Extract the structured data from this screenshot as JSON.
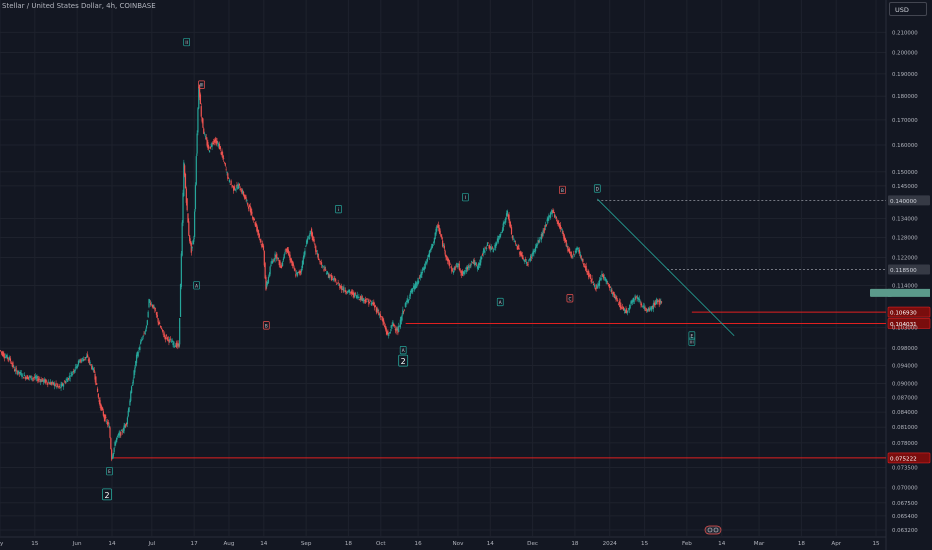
{
  "header": {
    "title": "Stellar / United States Dollar, 4h, COINBASE"
  },
  "currency_button": {
    "label": "USD"
  },
  "colors": {
    "background": "#131722",
    "grid": "#1e222d",
    "bull": "#26a69a",
    "bear": "#ef5350",
    "text": "#b2b5be",
    "support_line": "#e02020",
    "trend_line": "#26a69a"
  },
  "icons": {
    "timezone_badge": "clock-badge-icon"
  },
  "chart_data": {
    "type": "line",
    "symbol": "XLMUSD",
    "timeframe": "4h",
    "exchange": "COINBASE",
    "currency": "USD",
    "y_scale": "log",
    "ylim": [
      0.0623,
      0.2195
    ],
    "grid": true,
    "price_ticks": [
      0.21,
      0.2,
      0.19,
      0.18,
      0.17,
      0.16,
      0.15,
      0.145,
      0.134,
      0.128,
      0.122,
      0.114,
      0.103,
      0.098,
      0.094,
      0.09,
      0.087,
      0.084,
      0.081,
      0.078,
      0.0735,
      0.07,
      0.0675,
      0.0654,
      0.0632
    ],
    "time_ticks": [
      "ay",
      "15",
      "Jun",
      "14",
      "Jul",
      "17",
      "Aug",
      "14",
      "Sep",
      "18",
      "Oct",
      "16",
      "Nov",
      "14",
      "Dec",
      "18",
      "2024",
      "15",
      "Feb",
      "14",
      "Mar",
      "18",
      "Apr",
      "15"
    ],
    "time_tick_days": [
      0,
      14,
      31,
      45,
      61,
      78,
      92,
      106,
      123,
      140,
      153,
      168,
      184,
      197,
      214,
      231,
      245,
      259,
      276,
      290,
      305,
      322,
      336,
      352
    ],
    "price_path": [
      {
        "d": 0,
        "p": 0.0975
      },
      {
        "d": 2,
        "p": 0.0962
      },
      {
        "d": 4,
        "p": 0.0955
      },
      {
        "d": 6,
        "p": 0.093
      },
      {
        "d": 10,
        "p": 0.0915
      },
      {
        "d": 14,
        "p": 0.0912
      },
      {
        "d": 18,
        "p": 0.0905
      },
      {
        "d": 22,
        "p": 0.0898
      },
      {
        "d": 24,
        "p": 0.089
      },
      {
        "d": 28,
        "p": 0.0915
      },
      {
        "d": 32,
        "p": 0.095
      },
      {
        "d": 35,
        "p": 0.096
      },
      {
        "d": 38,
        "p": 0.0925
      },
      {
        "d": 40,
        "p": 0.086
      },
      {
        "d": 42,
        "p": 0.083
      },
      {
        "d": 44,
        "p": 0.081
      },
      {
        "d": 45,
        "p": 0.07522
      },
      {
        "d": 47,
        "p": 0.079
      },
      {
        "d": 49,
        "p": 0.08
      },
      {
        "d": 51,
        "p": 0.082
      },
      {
        "d": 53,
        "p": 0.089
      },
      {
        "d": 55,
        "p": 0.096
      },
      {
        "d": 57,
        "p": 0.1
      },
      {
        "d": 59,
        "p": 0.103
      },
      {
        "d": 60,
        "p": 0.11
      },
      {
        "d": 62,
        "p": 0.108
      },
      {
        "d": 64,
        "p": 0.104
      },
      {
        "d": 66,
        "p": 0.101
      },
      {
        "d": 68,
        "p": 0.1
      },
      {
        "d": 70,
        "p": 0.099
      },
      {
        "d": 72,
        "p": 0.0985
      },
      {
        "d": 74,
        "p": 0.153
      },
      {
        "d": 75,
        "p": 0.14
      },
      {
        "d": 76,
        "p": 0.129
      },
      {
        "d": 77,
        "p": 0.124
      },
      {
        "d": 78,
        "p": 0.128
      },
      {
        "d": 79,
        "p": 0.156
      },
      {
        "d": 80,
        "p": 0.185
      },
      {
        "d": 81,
        "p": 0.172
      },
      {
        "d": 82,
        "p": 0.165
      },
      {
        "d": 84,
        "p": 0.158
      },
      {
        "d": 86,
        "p": 0.162
      },
      {
        "d": 88,
        "p": 0.16
      },
      {
        "d": 90,
        "p": 0.154
      },
      {
        "d": 92,
        "p": 0.147
      },
      {
        "d": 94,
        "p": 0.144
      },
      {
        "d": 96,
        "p": 0.145
      },
      {
        "d": 98,
        "p": 0.142
      },
      {
        "d": 100,
        "p": 0.138
      },
      {
        "d": 102,
        "p": 0.134
      },
      {
        "d": 104,
        "p": 0.129
      },
      {
        "d": 106,
        "p": 0.124
      },
      {
        "d": 107,
        "p": 0.113
      },
      {
        "d": 109,
        "p": 0.12
      },
      {
        "d": 111,
        "p": 0.123
      },
      {
        "d": 113,
        "p": 0.119
      },
      {
        "d": 115,
        "p": 0.125
      },
      {
        "d": 117,
        "p": 0.121
      },
      {
        "d": 119,
        "p": 0.117
      },
      {
        "d": 121,
        "p": 0.118
      },
      {
        "d": 123,
        "p": 0.126
      },
      {
        "d": 125,
        "p": 0.13
      },
      {
        "d": 127,
        "p": 0.124
      },
      {
        "d": 129,
        "p": 0.12
      },
      {
        "d": 132,
        "p": 0.117
      },
      {
        "d": 135,
        "p": 0.115
      },
      {
        "d": 138,
        "p": 0.113
      },
      {
        "d": 141,
        "p": 0.112
      },
      {
        "d": 144,
        "p": 0.111
      },
      {
        "d": 147,
        "p": 0.11
      },
      {
        "d": 150,
        "p": 0.109
      },
      {
        "d": 153,
        "p": 0.106
      },
      {
        "d": 156,
        "p": 0.101
      },
      {
        "d": 158,
        "p": 0.104
      },
      {
        "d": 160,
        "p": 0.102
      },
      {
        "d": 162,
        "p": 0.107
      },
      {
        "d": 165,
        "p": 0.112
      },
      {
        "d": 168,
        "p": 0.115
      },
      {
        "d": 171,
        "p": 0.12
      },
      {
        "d": 174,
        "p": 0.126
      },
      {
        "d": 176,
        "p": 0.132
      },
      {
        "d": 178,
        "p": 0.126
      },
      {
        "d": 180,
        "p": 0.121
      },
      {
        "d": 182,
        "p": 0.118
      },
      {
        "d": 184,
        "p": 0.12
      },
      {
        "d": 186,
        "p": 0.117
      },
      {
        "d": 188,
        "p": 0.119
      },
      {
        "d": 190,
        "p": 0.121
      },
      {
        "d": 192,
        "p": 0.119
      },
      {
        "d": 194,
        "p": 0.123
      },
      {
        "d": 196,
        "p": 0.126
      },
      {
        "d": 198,
        "p": 0.124
      },
      {
        "d": 200,
        "p": 0.127
      },
      {
        "d": 202,
        "p": 0.131
      },
      {
        "d": 204,
        "p": 0.136
      },
      {
        "d": 206,
        "p": 0.128
      },
      {
        "d": 208,
        "p": 0.125
      },
      {
        "d": 210,
        "p": 0.122
      },
      {
        "d": 212,
        "p": 0.12
      },
      {
        "d": 214,
        "p": 0.123
      },
      {
        "d": 216,
        "p": 0.126
      },
      {
        "d": 218,
        "p": 0.129
      },
      {
        "d": 220,
        "p": 0.133
      },
      {
        "d": 222,
        "p": 0.137
      },
      {
        "d": 224,
        "p": 0.133
      },
      {
        "d": 226,
        "p": 0.13
      },
      {
        "d": 228,
        "p": 0.125
      },
      {
        "d": 230,
        "p": 0.122
      },
      {
        "d": 232,
        "p": 0.125
      },
      {
        "d": 234,
        "p": 0.121
      },
      {
        "d": 236,
        "p": 0.118
      },
      {
        "d": 238,
        "p": 0.115
      },
      {
        "d": 240,
        "p": 0.113
      },
      {
        "d": 242,
        "p": 0.117
      },
      {
        "d": 244,
        "p": 0.115
      },
      {
        "d": 246,
        "p": 0.112
      },
      {
        "d": 248,
        "p": 0.11
      },
      {
        "d": 250,
        "p": 0.108
      },
      {
        "d": 252,
        "p": 0.107
      },
      {
        "d": 254,
        "p": 0.11
      },
      {
        "d": 256,
        "p": 0.111
      },
      {
        "d": 258,
        "p": 0.109
      },
      {
        "d": 260,
        "p": 0.107
      },
      {
        "d": 262,
        "p": 0.108
      },
      {
        "d": 264,
        "p": 0.11
      },
      {
        "d": 266,
        "p": 0.109
      }
    ],
    "wave_labels": [
      {
        "text": "II",
        "d": 75,
        "p": 0.205,
        "color": "bull"
      },
      {
        "text": "III",
        "d": 81,
        "p": 0.185,
        "color": "bear"
      },
      {
        "text": "A",
        "d": 79,
        "p": 0.114,
        "color": "bull"
      },
      {
        "text": "B",
        "d": 107,
        "p": 0.1035,
        "color": "bear"
      },
      {
        "text": "i",
        "d": 136,
        "p": 0.137,
        "color": "bull"
      },
      {
        "text": "A",
        "d": 162,
        "p": 0.0975,
        "color": "bull"
      },
      {
        "text": "I",
        "d": 187,
        "p": 0.141,
        "color": "bull"
      },
      {
        "text": "A",
        "d": 201,
        "p": 0.1095,
        "color": "bull"
      },
      {
        "text": "B",
        "d": 226,
        "p": 0.1435,
        "color": "bear"
      },
      {
        "text": "C",
        "d": 229,
        "p": 0.1105,
        "color": "bear"
      },
      {
        "text": "D",
        "d": 240,
        "p": 0.144,
        "color": "bull"
      },
      {
        "text": "E",
        "d": 278,
        "p": 0.101,
        "color": "bull"
      },
      {
        "text": "iii",
        "d": 278,
        "p": 0.0995,
        "color": "bull"
      },
      {
        "text": "E",
        "d": 44,
        "p": 0.0728,
        "color": "bull"
      }
    ],
    "big_labels": [
      {
        "text": "2",
        "d": 162,
        "p": 0.095
      },
      {
        "text": "2",
        "d": 43,
        "p": 0.0688
      }
    ],
    "support_lines": [
      {
        "from_d": 278,
        "p": 0.10693,
        "label": "0.106930"
      },
      {
        "from_d": 163,
        "p": 0.10403,
        "label": "0.104031"
      },
      {
        "from_d": 45,
        "p": 0.07522,
        "label": "0.075222"
      }
    ],
    "dashed_levels": [
      {
        "from_d": 240,
        "p": 0.14,
        "label": "0.140000"
      },
      {
        "from_d": 268,
        "p": 0.1185,
        "label": "0.118500"
      }
    ],
    "trend_line": {
      "from": {
        "d": 240,
        "p": 0.1405
      },
      "to": {
        "d": 295,
        "p": 0.101
      }
    },
    "last_price_marker": {
      "p": 0.112,
      "color": "#5b9a8b"
    }
  }
}
